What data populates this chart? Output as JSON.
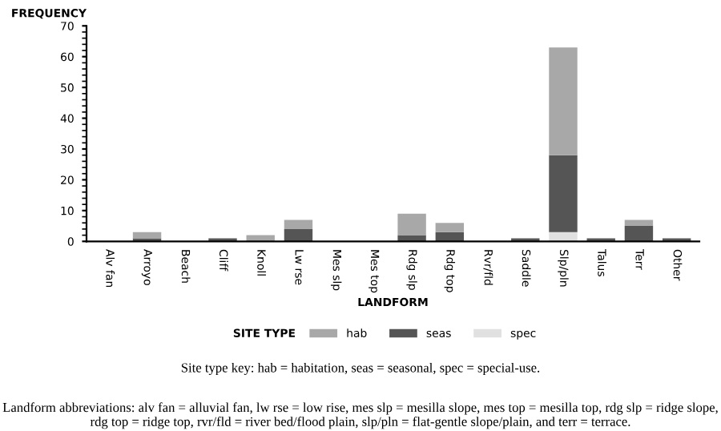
{
  "chart_data": {
    "type": "bar",
    "stacked": true,
    "ylabel": "FREQUENCY",
    "xlabel": "LANDFORM",
    "legend_title": "SITE TYPE",
    "legend": "bottom",
    "grid": false,
    "categories": [
      "Alv fan",
      "Arroyo",
      "Beach",
      "Cliff",
      "Knoll",
      "Lw rse",
      "Mes slp",
      "Mes top",
      "Rdg slp",
      "Rdg top",
      "Rvr/fld",
      "Saddle",
      "Slp/pln",
      "Talus",
      "Terr",
      "Other"
    ],
    "series": [
      {
        "name": "spec",
        "color": "#e0e0e0",
        "values": [
          0,
          0,
          0,
          0,
          0,
          0,
          0,
          0,
          0,
          0,
          0,
          0,
          3,
          0,
          0,
          0
        ]
      },
      {
        "name": "seas",
        "color": "#555555",
        "values": [
          0,
          1,
          0,
          1,
          0,
          4,
          0,
          0,
          2,
          3,
          0,
          1,
          25,
          1,
          5,
          1
        ]
      },
      {
        "name": "hab",
        "color": "#a8a8a8",
        "values": [
          0,
          2,
          0,
          0,
          2,
          3,
          0,
          0,
          7,
          3,
          0,
          0,
          35,
          0,
          2,
          0
        ]
      }
    ],
    "ylim": [
      0,
      70
    ],
    "yticks": [
      0,
      10,
      20,
      30,
      40,
      50,
      60,
      70
    ],
    "annotations": [
      "Site type key: hab = habitation, seas = seasonal, spec = special-use.",
      "Landform abbreviations: alv fan = alluvial fan, lw rse = low rise, mes slp = mesilla slope, mes top = mesilla top, rdg slp = ridge slope, rdg top = ridge top, rvr/fld = river bed/flood plain, slp/pln = flat-gentle slope/plain, and terr = terrace."
    ]
  }
}
